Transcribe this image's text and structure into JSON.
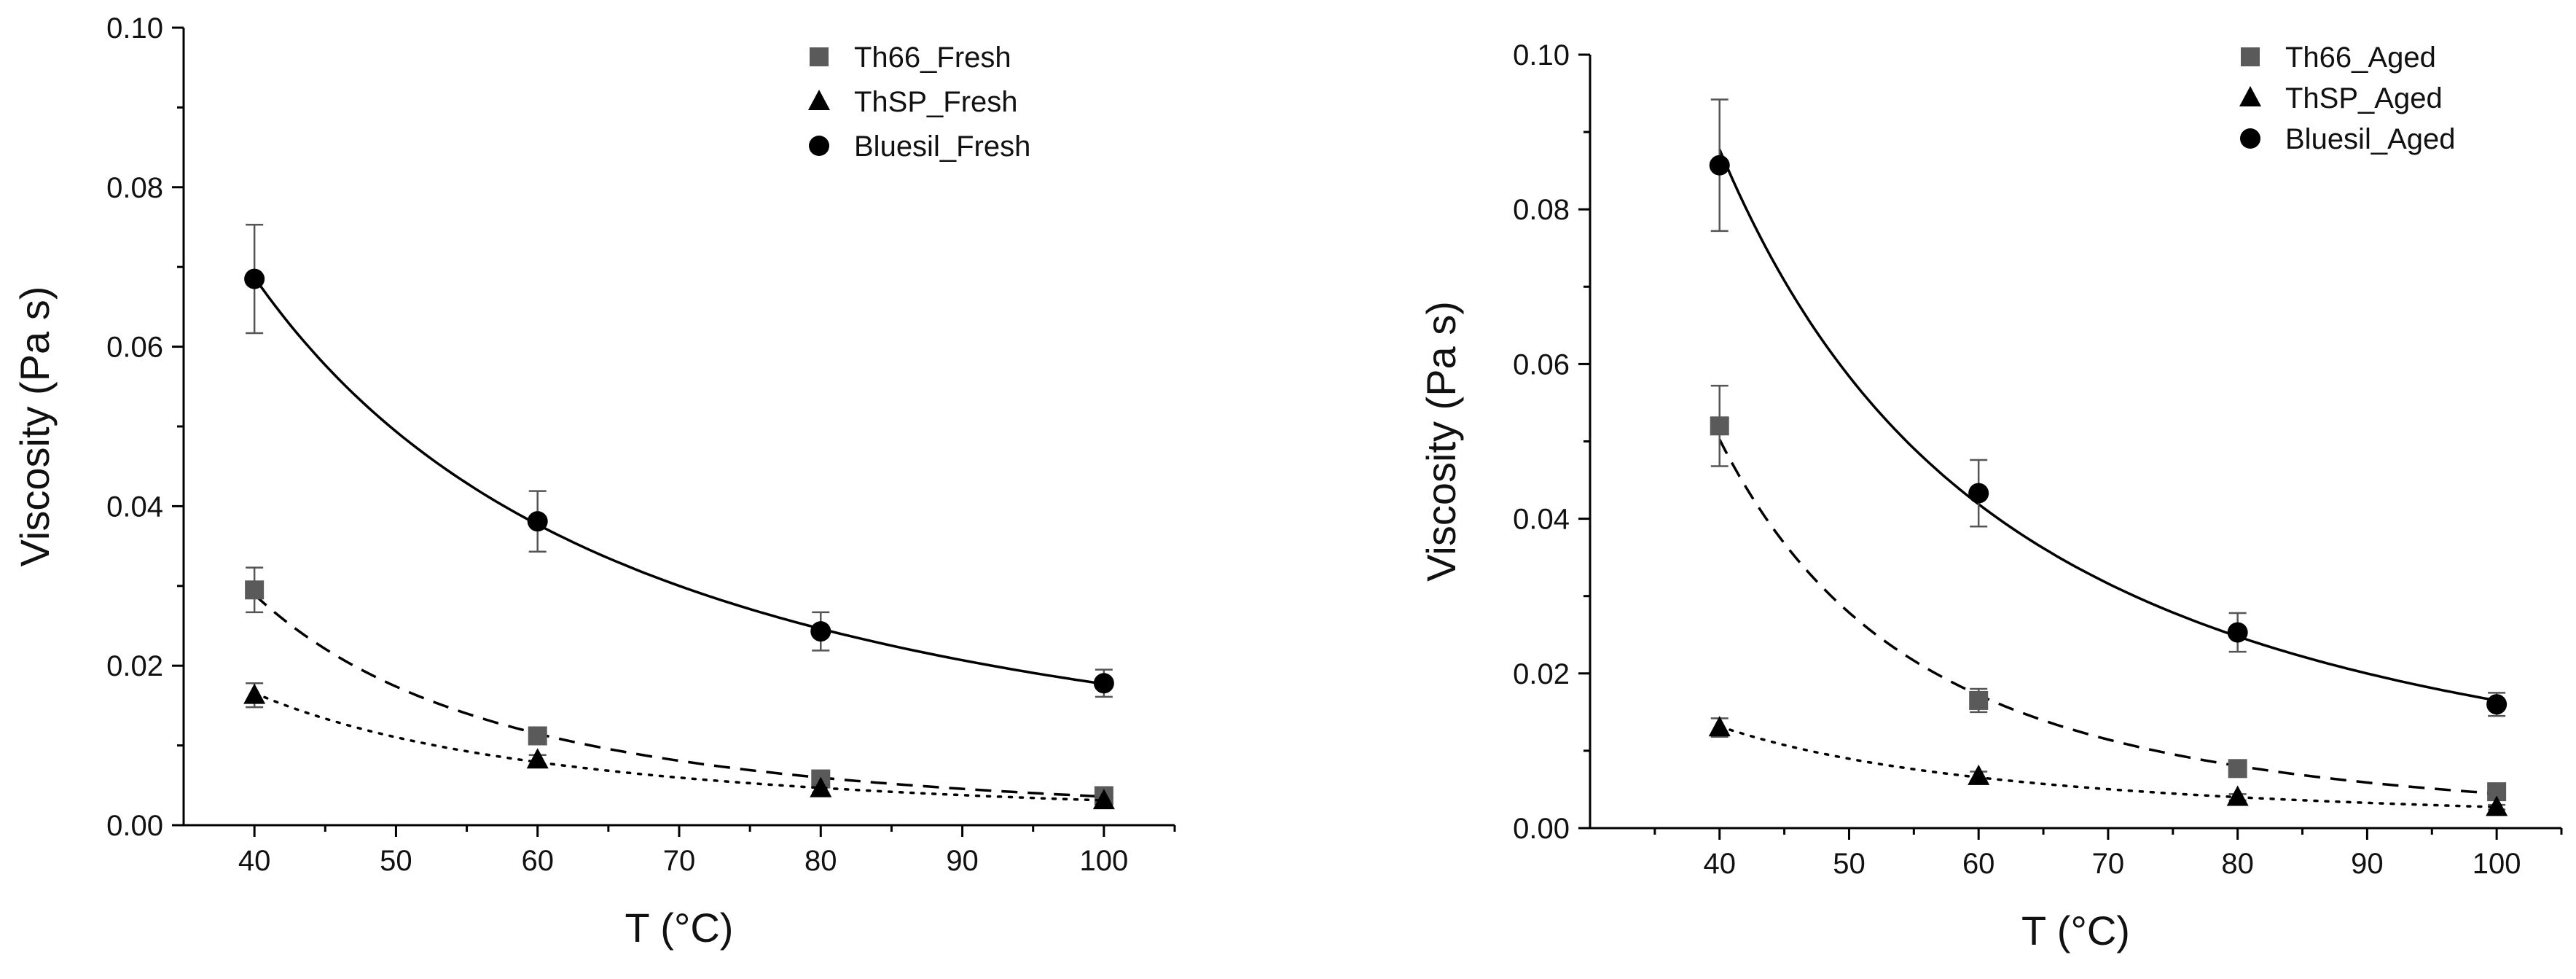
{
  "chart_data": [
    {
      "type": "scatter",
      "title": "",
      "xlabel": "T (°C)",
      "ylabel": "Viscosity (Pa s)",
      "xlim": [
        35,
        105
      ],
      "ylim": [
        0,
        0.1
      ],
      "x_ticks": [
        40,
        50,
        60,
        70,
        80,
        90,
        100
      ],
      "y_ticks": [
        0.0,
        0.02,
        0.04,
        0.06,
        0.08,
        0.1
      ],
      "x_tick_labels": [
        "40",
        "50",
        "60",
        "70",
        "80",
        "90",
        "100"
      ],
      "y_tick_labels": [
        "0.00",
        "0.02",
        "0.04",
        "0.06",
        "0.08",
        "0.10"
      ],
      "legend_position": "top-right",
      "grid": false,
      "x": [
        40,
        60,
        80,
        100
      ],
      "series": [
        {
          "name": "Th66_Fresh",
          "marker": "square",
          "color": "#5a5a5a",
          "fit": "dashed",
          "values": [
            0.0295,
            0.0112,
            0.0058,
            0.0037
          ],
          "errors": [
            0.0028,
            0.0008,
            0.0006,
            0.0005
          ]
        },
        {
          "name": "ThSP_Fresh",
          "marker": "triangle",
          "color": "#000000",
          "fit": "dotted",
          "values": [
            0.0163,
            0.0082,
            0.0046,
            0.0031
          ],
          "errors": [
            0.0015,
            0.0006,
            0.0005,
            0.0004
          ]
        },
        {
          "name": "Bluesil_Fresh",
          "marker": "circle",
          "color": "#000000",
          "fit": "solid",
          "values": [
            0.0685,
            0.0381,
            0.0243,
            0.0178
          ],
          "errors": [
            0.0068,
            0.0038,
            0.0024,
            0.0017
          ]
        }
      ]
    },
    {
      "type": "scatter",
      "title": "",
      "xlabel": "T (°C)",
      "ylabel": "Viscosity (Pa s)",
      "xlim": [
        30,
        105
      ],
      "ylim": [
        0,
        0.1
      ],
      "x_ticks": [
        40,
        50,
        60,
        70,
        80,
        90,
        100
      ],
      "y_ticks": [
        0.0,
        0.02,
        0.04,
        0.06,
        0.08,
        0.1
      ],
      "x_tick_labels": [
        "40",
        "50",
        "60",
        "70",
        "80",
        "90",
        "100"
      ],
      "y_tick_labels": [
        "0.00",
        "0.02",
        "0.04",
        "0.06",
        "0.08",
        "0.10"
      ],
      "legend_position": "top-right",
      "grid": false,
      "x": [
        40,
        60,
        80,
        100
      ],
      "series": [
        {
          "name": "Th66_Aged",
          "marker": "square",
          "color": "#5a5a5a",
          "fit": "dashed",
          "values": [
            0.052,
            0.0165,
            0.0077,
            0.0047
          ],
          "errors": [
            0.0052,
            0.0015,
            0.0005,
            0.0004
          ]
        },
        {
          "name": "ThSP_Aged",
          "marker": "triangle",
          "color": "#000000",
          "fit": "dotted",
          "values": [
            0.013,
            0.0067,
            0.004,
            0.0027
          ],
          "errors": [
            0.0012,
            0.0006,
            0.0004,
            0.0003
          ]
        },
        {
          "name": "Bluesil_Aged",
          "marker": "circle",
          "color": "#000000",
          "fit": "solid",
          "values": [
            0.0857,
            0.0433,
            0.0253,
            0.016
          ],
          "errors": [
            0.0085,
            0.0043,
            0.0025,
            0.0015
          ]
        }
      ]
    }
  ]
}
